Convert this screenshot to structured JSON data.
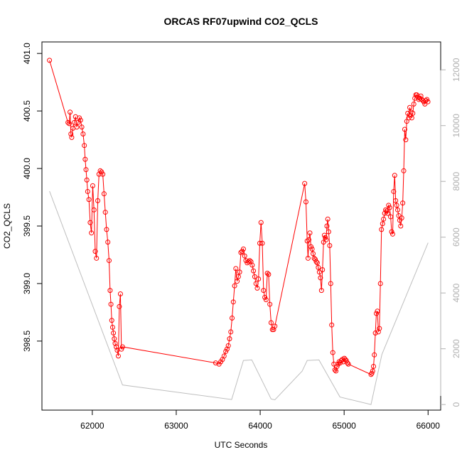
{
  "chart_data": {
    "type": "line",
    "title": "ORCAS RF07upwind CO2_QCLS",
    "xlabel": "UTC Seconds",
    "ylabel": "CO2_QCLS",
    "xlim": [
      61400,
      66150
    ],
    "ylim": [
      397.9,
      401.1
    ],
    "y2lim": [
      -200,
      13000
    ],
    "x_ticks": [
      62000,
      63000,
      64000,
      65000,
      66000
    ],
    "y_ticks": [
      398.5,
      399.0,
      399.5,
      400.0,
      400.5,
      401.0
    ],
    "y2_ticks": [
      0,
      2000,
      4000,
      6000,
      8000,
      10000,
      12000
    ],
    "grid": false,
    "colors": {
      "co2": "#ff0000",
      "altitude": "#bebebe"
    },
    "series": [
      {
        "axis": "left",
        "marker": "open-circle",
        "points": [
          [
            61490,
            400.94
          ],
          [
            61710,
            400.4
          ],
          [
            61725,
            400.39
          ],
          [
            61735,
            400.49
          ],
          [
            61745,
            400.3
          ],
          [
            61755,
            400.27
          ],
          [
            61770,
            400.35
          ],
          [
            61785,
            400.4
          ],
          [
            61800,
            400.45
          ],
          [
            61815,
            400.36
          ],
          [
            61830,
            400.4
          ],
          [
            61845,
            400.44
          ],
          [
            61860,
            400.42
          ],
          [
            61875,
            400.36
          ],
          [
            61890,
            400.3
          ],
          [
            61905,
            400.2
          ],
          [
            61915,
            400.08
          ],
          [
            61925,
            399.99
          ],
          [
            61935,
            399.9
          ],
          [
            61945,
            399.8
          ],
          [
            61960,
            399.73
          ],
          [
            61975,
            399.53
          ],
          [
            61990,
            399.44
          ],
          [
            62005,
            399.85
          ],
          [
            62020,
            399.64
          ],
          [
            62035,
            399.28
          ],
          [
            62050,
            399.22
          ],
          [
            62065,
            399.72
          ],
          [
            62080,
            399.95
          ],
          [
            62095,
            399.98
          ],
          [
            62110,
            399.97
          ],
          [
            62125,
            399.95
          ],
          [
            62140,
            399.78
          ],
          [
            62155,
            399.62
          ],
          [
            62170,
            399.47
          ],
          [
            62185,
            399.36
          ],
          [
            62200,
            399.2
          ],
          [
            62212,
            398.94
          ],
          [
            62222,
            398.82
          ],
          [
            62232,
            398.68
          ],
          [
            62242,
            398.62
          ],
          [
            62252,
            398.57
          ],
          [
            62262,
            398.52
          ],
          [
            62272,
            398.48
          ],
          [
            62285,
            398.45
          ],
          [
            62297,
            398.42
          ],
          [
            62310,
            398.37
          ],
          [
            62322,
            398.8
          ],
          [
            62335,
            398.91
          ],
          [
            62347,
            398.43
          ],
          [
            62360,
            398.45
          ],
          [
            63470,
            398.31
          ],
          [
            63510,
            398.3
          ],
          [
            63530,
            398.32
          ],
          [
            63550,
            398.34
          ],
          [
            63570,
            398.37
          ],
          [
            63590,
            398.41
          ],
          [
            63605,
            398.43
          ],
          [
            63620,
            398.46
          ],
          [
            63635,
            398.52
          ],
          [
            63650,
            398.58
          ],
          [
            63665,
            398.7
          ],
          [
            63680,
            398.84
          ],
          [
            63695,
            398.98
          ],
          [
            63710,
            399.13
          ],
          [
            63725,
            399.02
          ],
          [
            63740,
            399.06
          ],
          [
            63755,
            399.1
          ],
          [
            63770,
            399.27
          ],
          [
            63785,
            399.28
          ],
          [
            63800,
            399.3
          ],
          [
            63815,
            399.24
          ],
          [
            63830,
            399.2
          ],
          [
            63845,
            399.18
          ],
          [
            63860,
            399.19
          ],
          [
            63875,
            399.2
          ],
          [
            63890,
            399.19
          ],
          [
            63905,
            399.16
          ],
          [
            63920,
            399.11
          ],
          [
            63935,
            399.06
          ],
          [
            63950,
            399.0
          ],
          [
            63965,
            398.96
          ],
          [
            63980,
            399.04
          ],
          [
            63995,
            399.35
          ],
          [
            64010,
            399.53
          ],
          [
            64025,
            399.35
          ],
          [
            64040,
            398.94
          ],
          [
            64055,
            398.88
          ],
          [
            64070,
            398.86
          ],
          [
            64085,
            399.09
          ],
          [
            64100,
            399.08
          ],
          [
            64115,
            398.82
          ],
          [
            64130,
            398.66
          ],
          [
            64145,
            398.6
          ],
          [
            64160,
            398.6
          ],
          [
            64175,
            398.63
          ],
          [
            64530,
            399.87
          ],
          [
            64545,
            399.71
          ],
          [
            64560,
            399.37
          ],
          [
            64570,
            399.22
          ],
          [
            64580,
            399.38
          ],
          [
            64592,
            399.44
          ],
          [
            64605,
            399.32
          ],
          [
            64618,
            399.3
          ],
          [
            64630,
            399.26
          ],
          [
            64643,
            399.22
          ],
          [
            64656,
            399.21
          ],
          [
            64668,
            399.19
          ],
          [
            64680,
            399.18
          ],
          [
            64692,
            399.14
          ],
          [
            64705,
            399.1
          ],
          [
            64718,
            399.05
          ],
          [
            64730,
            398.94
          ],
          [
            64742,
            399.12
          ],
          [
            64755,
            399.36
          ],
          [
            64765,
            399.42
          ],
          [
            64775,
            399.4
          ],
          [
            64785,
            399.38
          ],
          [
            64795,
            399.5
          ],
          [
            64805,
            399.56
          ],
          [
            64815,
            399.45
          ],
          [
            64828,
            399.33
          ],
          [
            64840,
            399.0
          ],
          [
            64852,
            398.64
          ],
          [
            64865,
            398.4
          ],
          [
            64878,
            398.3
          ],
          [
            64890,
            398.25
          ],
          [
            64902,
            398.24
          ],
          [
            64915,
            398.28
          ],
          [
            64928,
            398.3
          ],
          [
            64940,
            398.32
          ],
          [
            64952,
            398.31
          ],
          [
            64965,
            398.33
          ],
          [
            64978,
            398.34
          ],
          [
            64990,
            398.32
          ],
          [
            65002,
            398.35
          ],
          [
            65014,
            398.34
          ],
          [
            65026,
            398.33
          ],
          [
            65038,
            398.31
          ],
          [
            65050,
            398.3
          ],
          [
            65320,
            398.21
          ],
          [
            65330,
            398.22
          ],
          [
            65340,
            398.24
          ],
          [
            65350,
            398.28
          ],
          [
            65360,
            398.38
          ],
          [
            65372,
            398.57
          ],
          [
            65384,
            398.74
          ],
          [
            65396,
            398.76
          ],
          [
            65408,
            398.58
          ],
          [
            65420,
            398.61
          ],
          [
            65432,
            399.0
          ],
          [
            65445,
            399.47
          ],
          [
            65458,
            399.52
          ],
          [
            65470,
            399.56
          ],
          [
            65482,
            399.61
          ],
          [
            65494,
            399.64
          ],
          [
            65506,
            399.63
          ],
          [
            65518,
            399.61
          ],
          [
            65530,
            399.68
          ],
          [
            65542,
            399.66
          ],
          [
            65554,
            399.58
          ],
          [
            65566,
            399.45
          ],
          [
            65578,
            399.43
          ],
          [
            65590,
            399.8
          ],
          [
            65602,
            399.94
          ],
          [
            65614,
            399.72
          ],
          [
            65626,
            399.68
          ],
          [
            65638,
            399.64
          ],
          [
            65650,
            399.59
          ],
          [
            65662,
            399.55
          ],
          [
            65674,
            399.5
          ],
          [
            65686,
            399.57
          ],
          [
            65698,
            399.7
          ],
          [
            65710,
            399.98
          ],
          [
            65722,
            400.34
          ],
          [
            65734,
            400.25
          ],
          [
            65746,
            400.41
          ],
          [
            65758,
            400.48
          ],
          [
            65770,
            400.44
          ],
          [
            65782,
            400.53
          ],
          [
            65794,
            400.49
          ],
          [
            65806,
            400.44
          ],
          [
            65818,
            400.48
          ],
          [
            65830,
            400.56
          ],
          [
            65842,
            400.61
          ],
          [
            65854,
            400.64
          ],
          [
            65866,
            400.64
          ],
          [
            65878,
            400.62
          ],
          [
            65890,
            400.6
          ],
          [
            65902,
            400.61
          ],
          [
            65914,
            400.63
          ],
          [
            65926,
            400.6
          ],
          [
            65938,
            400.59
          ],
          [
            65950,
            400.58
          ],
          [
            65962,
            400.56
          ],
          [
            65974,
            400.59
          ],
          [
            65986,
            400.6
          ],
          [
            65998,
            400.58
          ]
        ]
      },
      {
        "axis": "right",
        "marker": "none",
        "points": [
          [
            61490,
            7650
          ],
          [
            62360,
            700
          ],
          [
            63660,
            180
          ],
          [
            63800,
            1580
          ],
          [
            63900,
            1600
          ],
          [
            64130,
            200
          ],
          [
            64175,
            170
          ],
          [
            64500,
            1200
          ],
          [
            64560,
            1580
          ],
          [
            64700,
            1600
          ],
          [
            64950,
            270
          ],
          [
            65320,
            0
          ],
          [
            65450,
            1800
          ],
          [
            66000,
            5800
          ]
        ]
      }
    ]
  }
}
